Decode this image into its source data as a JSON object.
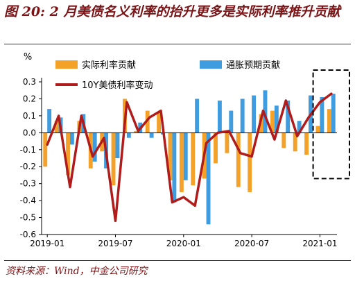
{
  "title": "图 20: 2 月美债名义利率的抬升更多是实际利率推升贡献",
  "source": "资料来源：Wind，中金公司研究",
  "chart_data": {
    "type": "bar",
    "ylabel": "%",
    "ylim": [
      -0.6,
      0.3
    ],
    "yticks": [
      -0.6,
      -0.5,
      -0.4,
      -0.3,
      -0.2,
      -0.1,
      0.0,
      0.1,
      0.2,
      0.3
    ],
    "x_tick_labels": [
      "2019-01",
      "2019-07",
      "2020-01",
      "2020-07",
      "2021-01"
    ],
    "x_tick_index": [
      0,
      6,
      12,
      18,
      24
    ],
    "legend_position": "top",
    "highlight_box": {
      "from_index": 24,
      "to_index": 26,
      "style": "dashed"
    },
    "colors": {
      "real": "#f4a12a",
      "infl": "#3f9cdf",
      "line": "#b01c1c"
    },
    "series": [
      {
        "name": "实际利率贡献",
        "kind": "bar",
        "values": [
          -0.2,
          0.07,
          -0.25,
          0.07,
          -0.21,
          -0.11,
          -0.31,
          0.2,
          0.01,
          0.13,
          0.12,
          -0.28,
          -0.35,
          -0.31,
          -0.27,
          -0.18,
          -0.12,
          -0.32,
          -0.35,
          0.11,
          0.13,
          -0.09,
          -0.11,
          -0.13,
          0.04,
          0.14
        ]
      },
      {
        "name": "通胀预期贡献",
        "kind": "bar",
        "values": [
          0.14,
          0.09,
          -0.07,
          0.11,
          -0.17,
          -0.21,
          -0.15,
          -0.03,
          0.06,
          -0.03,
          -0.01,
          -0.41,
          -0.28,
          0.2,
          -0.54,
          0.19,
          0.13,
          0.2,
          0.22,
          0.25,
          0.16,
          0.19,
          0.07,
          0.22,
          0.21,
          0.23
        ]
      },
      {
        "name": "10Y美债利率变动",
        "kind": "line",
        "values": [
          -0.07,
          0.1,
          -0.32,
          0.1,
          -0.14,
          -0.03,
          -0.52,
          0.18,
          0.01,
          0.09,
          0.13,
          -0.41,
          -0.38,
          -0.43,
          -0.06,
          0.0,
          0.01,
          -0.12,
          -0.14,
          0.13,
          -0.04,
          0.19,
          -0.02,
          0.09,
          0.18,
          0.23
        ]
      }
    ]
  }
}
